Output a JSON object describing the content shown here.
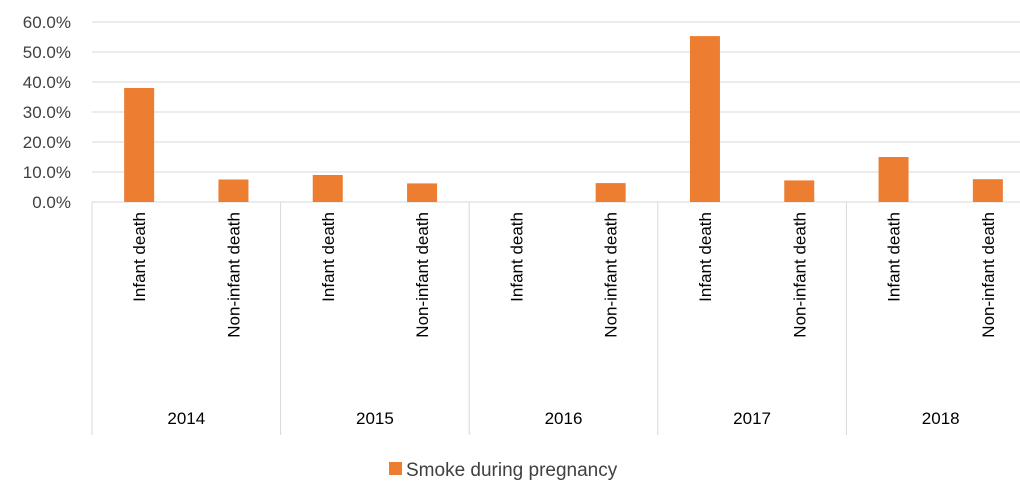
{
  "chart_data": {
    "type": "bar",
    "title": "",
    "xlabel": "",
    "ylabel": "",
    "ylim": [
      0,
      0.6
    ],
    "ytick_values": [
      0,
      0.1,
      0.2,
      0.3,
      0.4,
      0.5,
      0.6
    ],
    "ytick_labels": [
      "0.0%",
      "10.0%",
      "20.0%",
      "30.0%",
      "40.0%",
      "50.0%",
      "60.0%"
    ],
    "grid": true,
    "legend_position": "bottom",
    "groups": [
      "2014",
      "2015",
      "2016",
      "2017",
      "2018"
    ],
    "categories": [
      {
        "group": "2014",
        "label": "Infant death"
      },
      {
        "group": "2014",
        "label": "Non-infant death"
      },
      {
        "group": "2015",
        "label": "Infant death"
      },
      {
        "group": "2015",
        "label": "Non-infant death"
      },
      {
        "group": "2016",
        "label": "Infant death"
      },
      {
        "group": "2016",
        "label": "Non-infant death"
      },
      {
        "group": "2017",
        "label": "Infant death"
      },
      {
        "group": "2017",
        "label": "Non-infant death"
      },
      {
        "group": "2018",
        "label": "Infant death"
      },
      {
        "group": "2018",
        "label": "Non-infant death"
      }
    ],
    "series": [
      {
        "name": "Smoke during pregnancy",
        "color": "#ED7D31",
        "values": [
          0.38,
          0.075,
          0.09,
          0.062,
          0.0,
          0.063,
          0.553,
          0.072,
          0.15,
          0.076
        ]
      }
    ]
  }
}
